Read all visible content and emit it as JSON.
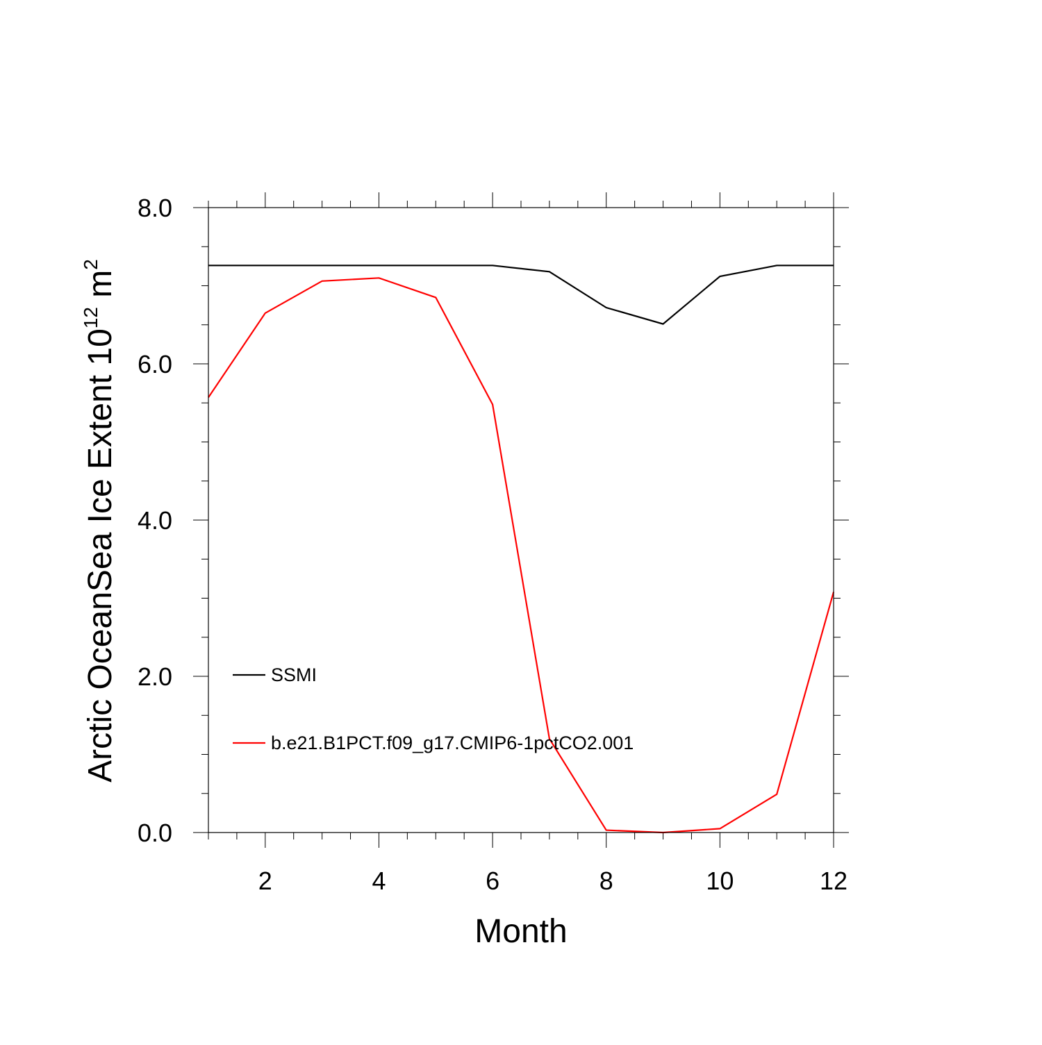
{
  "chart_data": {
    "type": "line",
    "xlabel": "Month",
    "ylabel": {
      "prefix": "Arctic OceanSea Ice Extent 10",
      "exp1": "12",
      "unit": " m",
      "exp2": "2"
    },
    "xlim": [
      1,
      12
    ],
    "ylim": [
      0,
      8
    ],
    "x_ticks": [
      2,
      4,
      6,
      8,
      10,
      12
    ],
    "x_tick_labels": [
      "2",
      "4",
      "6",
      "8",
      "10",
      "12"
    ],
    "y_ticks": [
      0,
      2,
      4,
      6,
      8
    ],
    "y_tick_labels": [
      "0.0",
      "2.0",
      "4.0",
      "6.0",
      "8.0"
    ],
    "grid": false,
    "legend_position": "lower-left",
    "x": [
      1,
      2,
      3,
      4,
      5,
      6,
      7,
      8,
      9,
      10,
      11,
      12
    ],
    "series": [
      {
        "name": "SSMI",
        "color": "#000000",
        "values": [
          7.26,
          7.26,
          7.26,
          7.26,
          7.26,
          7.26,
          7.18,
          6.72,
          6.51,
          7.12,
          7.26,
          7.26
        ]
      },
      {
        "name": "b.e21.B1PCT.f09_g17.CMIP6-1pctCO2.001",
        "color": "#ff0000",
        "values": [
          5.57,
          6.65,
          7.06,
          7.1,
          6.85,
          5.48,
          1.2,
          0.03,
          0.0,
          0.05,
          0.49,
          3.08
        ]
      }
    ]
  }
}
